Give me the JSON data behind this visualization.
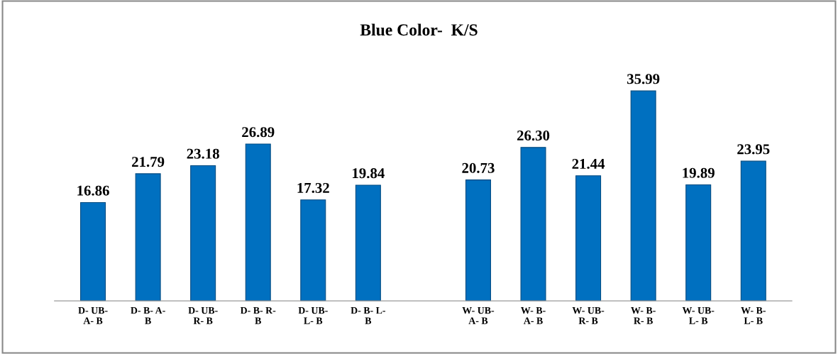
{
  "chart_data": {
    "type": "bar",
    "title": "Blue Color-  K/S",
    "categories": [
      "D- UB-\nA- B",
      "D- B- A-\nB",
      "D- UB-\nR- B",
      "D- B- R-\nB",
      "D- UB-\nL- B",
      "D- B- L-\nB",
      null,
      "W- UB-\nA- B",
      "W- B-\nA- B",
      "W- UB-\nR- B",
      "W- B-\nR- B",
      "W- UB-\nL- B",
      "W- B-\nL- B"
    ],
    "values": [
      16.86,
      21.79,
      23.18,
      26.89,
      17.32,
      19.84,
      null,
      20.73,
      26.3,
      21.44,
      35.99,
      19.89,
      23.95
    ],
    "value_labels": [
      "16.86",
      "21.79",
      "23.18",
      "26.89",
      "17.32",
      "19.84",
      null,
      "20.73",
      "26.30",
      "21.44",
      "35.99",
      "19.89",
      "23.95"
    ],
    "color": "#0070c0",
    "grid": false,
    "legend": false
  }
}
